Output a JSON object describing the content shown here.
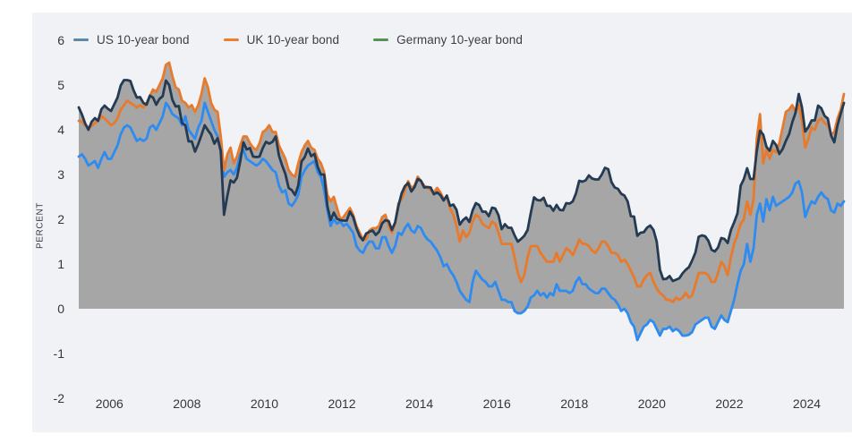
{
  "colors": {
    "page_bg": "#ffffff",
    "card_bg": "#f1f2f5",
    "area_fill": "#a6a6a6",
    "axis_text": "#33373d",
    "legend_text": "#3b3f45"
  },
  "chart_data": {
    "type": "line",
    "title": "",
    "xlabel": "",
    "ylabel": "PERCENT",
    "ylim": [
      -2,
      6
    ],
    "yticks": [
      6,
      5,
      4,
      3,
      2,
      1,
      0,
      -1,
      -2
    ],
    "xticks": [
      2006,
      2008,
      2010,
      2012,
      2014,
      2016,
      2018,
      2020,
      2022,
      2024
    ],
    "x_start": 2005.2083,
    "x_end": 2024.9583,
    "grid": false,
    "legend_position": "top-left",
    "area_fill_color": "#a6a6a6",
    "area_baseline": 0,
    "series": [
      {
        "name": "US 10-year bond",
        "legend_color": "#5E87A5",
        "line_color": "#243B53",
        "start_year": 2005,
        "start_month": 3,
        "values": [
          4.5,
          4.34,
          4.14,
          4.0,
          4.18,
          4.26,
          4.2,
          4.46,
          4.54,
          4.47,
          4.42,
          4.57,
          4.72,
          4.99,
          5.11,
          5.11,
          5.09,
          4.88,
          4.72,
          4.73,
          4.6,
          4.56,
          4.76,
          4.72,
          4.56,
          4.69,
          4.75,
          5.1,
          5.0,
          4.67,
          4.52,
          4.53,
          4.15,
          4.1,
          3.74,
          3.74,
          3.51,
          3.68,
          3.88,
          4.1,
          3.99,
          3.89,
          3.69,
          3.81,
          3.53,
          2.1,
          2.52,
          2.87,
          2.82,
          2.93,
          3.29,
          3.72,
          3.56,
          3.59,
          3.4,
          3.39,
          3.4,
          3.59,
          3.73,
          3.69,
          3.73,
          3.85,
          3.42,
          3.2,
          3.01,
          2.7,
          2.65,
          2.54,
          2.76,
          3.29,
          3.39,
          3.58,
          3.41,
          3.46,
          3.17,
          3.0,
          3.0,
          2.3,
          1.98,
          2.15,
          2.01,
          1.98,
          1.97,
          1.97,
          2.17,
          2.05,
          1.8,
          1.62,
          1.53,
          1.68,
          1.72,
          1.75,
          1.65,
          1.72,
          1.91,
          1.98,
          1.96,
          1.76,
          1.93,
          2.3,
          2.58,
          2.74,
          2.81,
          2.62,
          2.72,
          2.9,
          2.86,
          2.71,
          2.72,
          2.71,
          2.56,
          2.6,
          2.54,
          2.42,
          2.53,
          2.3,
          2.33,
          2.21,
          1.88,
          1.98,
          2.04,
          1.94,
          2.2,
          2.36,
          2.32,
          2.17,
          2.17,
          2.07,
          2.26,
          2.24,
          2.09,
          1.78,
          1.89,
          1.81,
          1.81,
          1.64,
          1.5,
          1.56,
          1.63,
          1.76,
          2.14,
          2.49,
          2.43,
          2.42,
          2.48,
          2.3,
          2.3,
          2.19,
          2.32,
          2.21,
          2.2,
          2.36,
          2.35,
          2.4,
          2.58,
          2.86,
          2.84,
          2.87,
          2.98,
          2.91,
          2.89,
          2.89,
          3.0,
          3.15,
          3.12,
          2.83,
          2.71,
          2.68,
          2.57,
          2.53,
          2.4,
          2.07,
          2.06,
          1.63,
          1.7,
          1.71,
          1.81,
          1.86,
          1.76,
          1.5,
          0.87,
          0.66,
          0.67,
          0.73,
          0.62,
          0.65,
          0.68,
          0.79,
          0.87,
          0.93,
          1.08,
          1.26,
          1.61,
          1.64,
          1.62,
          1.52,
          1.32,
          1.28,
          1.37,
          1.58,
          1.56,
          1.47,
          1.76,
          1.93,
          2.13,
          2.75,
          2.9,
          3.14,
          2.9,
          2.9,
          3.52,
          3.98,
          3.89,
          3.62,
          3.53,
          3.75,
          3.66,
          3.46,
          3.57,
          3.75,
          3.9,
          4.17,
          4.38,
          4.8,
          4.5,
          3.96,
          4.06,
          4.21,
          4.21,
          4.54,
          4.48,
          4.31,
          4.25,
          3.87,
          3.72,
          4.1,
          4.36,
          4.6
        ]
      },
      {
        "name": "UK 10-year bond",
        "legend_color": "#ED7D31",
        "line_color": "#E87A2C",
        "start_year": 2005,
        "start_month": 3,
        "values": [
          4.2,
          4.18,
          4.1,
          4.05,
          4.08,
          4.15,
          4.2,
          4.3,
          4.25,
          4.18,
          4.1,
          4.15,
          4.25,
          4.45,
          4.55,
          4.65,
          4.6,
          4.55,
          4.5,
          4.55,
          4.5,
          4.6,
          4.75,
          4.9,
          4.85,
          5.0,
          5.15,
          5.45,
          5.5,
          5.2,
          4.95,
          4.9,
          4.65,
          4.6,
          4.5,
          4.55,
          4.4,
          4.55,
          4.8,
          5.15,
          4.95,
          4.6,
          4.45,
          4.4,
          3.85,
          3.1,
          3.45,
          3.6,
          3.25,
          3.4,
          3.65,
          3.85,
          3.85,
          3.7,
          3.6,
          3.55,
          3.7,
          3.95,
          4.0,
          4.1,
          3.95,
          3.95,
          3.65,
          3.5,
          3.35,
          3.1,
          3.0,
          2.95,
          3.25,
          3.5,
          3.65,
          3.75,
          3.6,
          3.55,
          3.35,
          3.25,
          3.05,
          2.55,
          2.4,
          2.5,
          2.25,
          2.0,
          2.05,
          2.15,
          2.25,
          2.1,
          1.85,
          1.7,
          1.55,
          1.55,
          1.75,
          1.8,
          1.8,
          1.85,
          2.05,
          2.1,
          1.85,
          1.7,
          1.9,
          2.35,
          2.45,
          2.65,
          2.85,
          2.7,
          2.75,
          2.95,
          2.85,
          2.75,
          2.7,
          2.65,
          2.6,
          2.7,
          2.6,
          2.45,
          2.5,
          2.25,
          2.1,
          1.85,
          1.5,
          1.75,
          1.6,
          1.7,
          1.95,
          2.1,
          2.05,
          1.9,
          1.85,
          1.8,
          1.95,
          1.9,
          1.7,
          1.45,
          1.45,
          1.45,
          1.45,
          1.15,
          0.8,
          0.6,
          0.75,
          1.15,
          1.4,
          1.4,
          1.4,
          1.25,
          1.15,
          1.05,
          1.05,
          1.05,
          1.25,
          1.05,
          1.2,
          1.35,
          1.3,
          1.2,
          1.35,
          1.55,
          1.45,
          1.45,
          1.4,
          1.3,
          1.25,
          1.35,
          1.5,
          1.5,
          1.4,
          1.25,
          1.25,
          1.2,
          1.05,
          1.1,
          1.0,
          0.85,
          0.7,
          0.5,
          0.5,
          0.65,
          0.75,
          0.8,
          0.6,
          0.45,
          0.35,
          0.3,
          0.2,
          0.2,
          0.15,
          0.25,
          0.2,
          0.25,
          0.35,
          0.25,
          0.3,
          0.55,
          0.8,
          0.8,
          0.8,
          0.75,
          0.6,
          0.6,
          0.8,
          1.05,
          0.95,
          0.75,
          1.15,
          1.45,
          1.65,
          1.9,
          2.0,
          2.4,
          2.1,
          2.45,
          3.8,
          4.35,
          3.25,
          3.55,
          3.35,
          3.55,
          3.5,
          3.7,
          4.05,
          4.4,
          4.45,
          4.55,
          4.4,
          4.55,
          4.2,
          3.6,
          3.8,
          4.05,
          4.0,
          4.2,
          4.25,
          4.15,
          4.1,
          3.9,
          3.95,
          4.25,
          4.45,
          4.8
        ]
      },
      {
        "name": "Germany 10-year bond",
        "legend_color": "#569158",
        "line_color": "#2E8BF0",
        "start_year": 2005,
        "start_month": 3,
        "values": [
          3.4,
          3.45,
          3.35,
          3.2,
          3.25,
          3.3,
          3.15,
          3.35,
          3.5,
          3.35,
          3.35,
          3.5,
          3.65,
          3.9,
          4.05,
          4.1,
          4.05,
          3.9,
          3.75,
          3.8,
          3.75,
          3.8,
          4.05,
          4.1,
          4.0,
          4.15,
          4.3,
          4.6,
          4.5,
          4.35,
          4.3,
          4.25,
          4.1,
          4.3,
          4.0,
          3.9,
          3.8,
          4.05,
          4.2,
          4.6,
          4.4,
          4.2,
          4.0,
          3.85,
          3.5,
          2.95,
          3.05,
          3.1,
          3.0,
          3.15,
          3.45,
          3.55,
          3.35,
          3.3,
          3.25,
          3.2,
          3.25,
          3.35,
          3.3,
          3.2,
          3.1,
          3.05,
          2.75,
          2.6,
          2.65,
          2.35,
          2.3,
          2.4,
          2.55,
          2.95,
          3.1,
          3.2,
          3.25,
          3.3,
          3.05,
          2.95,
          2.65,
          2.2,
          1.85,
          2.0,
          1.9,
          1.95,
          1.85,
          1.9,
          1.8,
          1.7,
          1.4,
          1.3,
          1.25,
          1.4,
          1.5,
          1.5,
          1.35,
          1.35,
          1.6,
          1.6,
          1.4,
          1.25,
          1.4,
          1.7,
          1.65,
          1.8,
          1.9,
          1.75,
          1.7,
          1.85,
          1.8,
          1.65,
          1.55,
          1.5,
          1.4,
          1.3,
          1.15,
          0.95,
          1.0,
          0.85,
          0.75,
          0.6,
          0.4,
          0.3,
          0.2,
          0.15,
          0.6,
          0.85,
          0.75,
          0.65,
          0.6,
          0.5,
          0.5,
          0.6,
          0.4,
          0.2,
          0.2,
          0.15,
          0.15,
          -0.05,
          -0.1,
          -0.1,
          -0.05,
          0.05,
          0.25,
          0.3,
          0.4,
          0.3,
          0.35,
          0.25,
          0.35,
          0.3,
          0.55,
          0.4,
          0.4,
          0.4,
          0.35,
          0.4,
          0.6,
          0.7,
          0.55,
          0.55,
          0.45,
          0.4,
          0.35,
          0.35,
          0.45,
          0.45,
          0.35,
          0.25,
          0.2,
          0.1,
          -0.05,
          0.0,
          -0.1,
          -0.3,
          -0.4,
          -0.7,
          -0.55,
          -0.4,
          -0.35,
          -0.25,
          -0.3,
          -0.45,
          -0.6,
          -0.45,
          -0.45,
          -0.4,
          -0.5,
          -0.45,
          -0.5,
          -0.6,
          -0.6,
          -0.58,
          -0.52,
          -0.35,
          -0.3,
          -0.25,
          -0.2,
          -0.2,
          -0.4,
          -0.45,
          -0.3,
          -0.15,
          -0.25,
          -0.3,
          -0.05,
          0.2,
          0.55,
          0.85,
          1.0,
          1.45,
          1.05,
          1.35,
          2.1,
          2.35,
          1.95,
          2.45,
          2.2,
          2.5,
          2.3,
          2.35,
          2.4,
          2.45,
          2.5,
          2.6,
          2.8,
          2.85,
          2.6,
          2.05,
          2.25,
          2.4,
          2.35,
          2.5,
          2.6,
          2.5,
          2.45,
          2.2,
          2.15,
          2.35,
          2.3,
          2.4
        ]
      }
    ]
  }
}
